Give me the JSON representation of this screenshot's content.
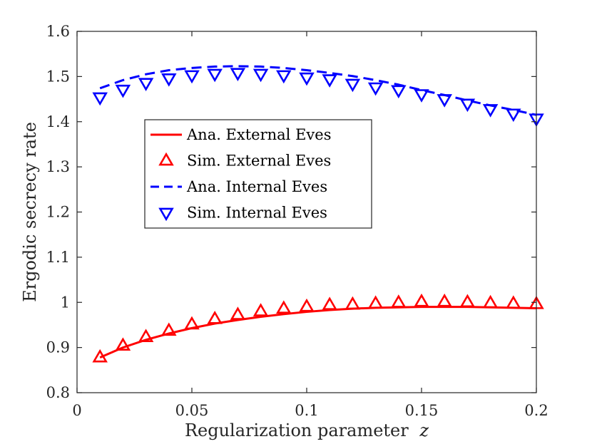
{
  "chart_data": {
    "type": "line",
    "title": "",
    "xlabel": "Regularization parameter",
    "xlabel_var": "z",
    "ylabel": "Ergodic secrecy rate",
    "xlim": [
      0,
      0.2
    ],
    "ylim": [
      0.8,
      1.6
    ],
    "xticks": [
      0,
      0.05,
      0.1,
      0.15,
      0.2
    ],
    "xtick_labels": [
      "0",
      "0.05",
      "0.1",
      "0.15",
      "0.2"
    ],
    "yticks": [
      0.8,
      0.9,
      1,
      1.1,
      1.2,
      1.3,
      1.4,
      1.5,
      1.6
    ],
    "ytick_labels": [
      "0.8",
      "0.9",
      "1",
      "1.1",
      "1.2",
      "1.3",
      "1.4",
      "1.5",
      "1.6"
    ],
    "grid": false,
    "legend_position": "center-left",
    "x": [
      0.01,
      0.02,
      0.03,
      0.04,
      0.05,
      0.06,
      0.07,
      0.08,
      0.09,
      0.1,
      0.11,
      0.12,
      0.13,
      0.14,
      0.15,
      0.16,
      0.17,
      0.18,
      0.19,
      0.2
    ],
    "series": [
      {
        "name": "Ana. External Eves",
        "style": "line-solid",
        "color": "#ff0000",
        "values": [
          0.878,
          0.9,
          0.917,
          0.931,
          0.943,
          0.953,
          0.961,
          0.968,
          0.974,
          0.979,
          0.983,
          0.986,
          0.988,
          0.989,
          0.99,
          0.99,
          0.99,
          0.989,
          0.988,
          0.987
        ]
      },
      {
        "name": "Sim. External Eves",
        "style": "marker-triangle-up",
        "color": "#ff0000",
        "values": [
          0.878,
          0.904,
          0.923,
          0.937,
          0.951,
          0.963,
          0.972,
          0.98,
          0.986,
          0.99,
          0.994,
          0.995,
          0.997,
          0.999,
          1.001,
          1.001,
          1.0,
          0.998,
          0.997,
          0.996
        ]
      },
      {
        "name": "Ana. Internal Eves",
        "style": "line-dashed",
        "color": "#0000ff",
        "values": [
          1.474,
          1.492,
          1.505,
          1.514,
          1.519,
          1.522,
          1.523,
          1.522,
          1.519,
          1.514,
          1.508,
          1.501,
          1.492,
          1.482,
          1.47,
          1.459,
          1.447,
          1.436,
          1.426,
          1.415
        ]
      },
      {
        "name": "Sim. Internal Eves",
        "style": "marker-triangle-down",
        "color": "#0000ff",
        "values": [
          1.454,
          1.471,
          1.486,
          1.496,
          1.503,
          1.506,
          1.508,
          1.506,
          1.503,
          1.498,
          1.494,
          1.484,
          1.476,
          1.47,
          1.461,
          1.45,
          1.44,
          1.428,
          1.418,
          1.407
        ]
      }
    ]
  }
}
